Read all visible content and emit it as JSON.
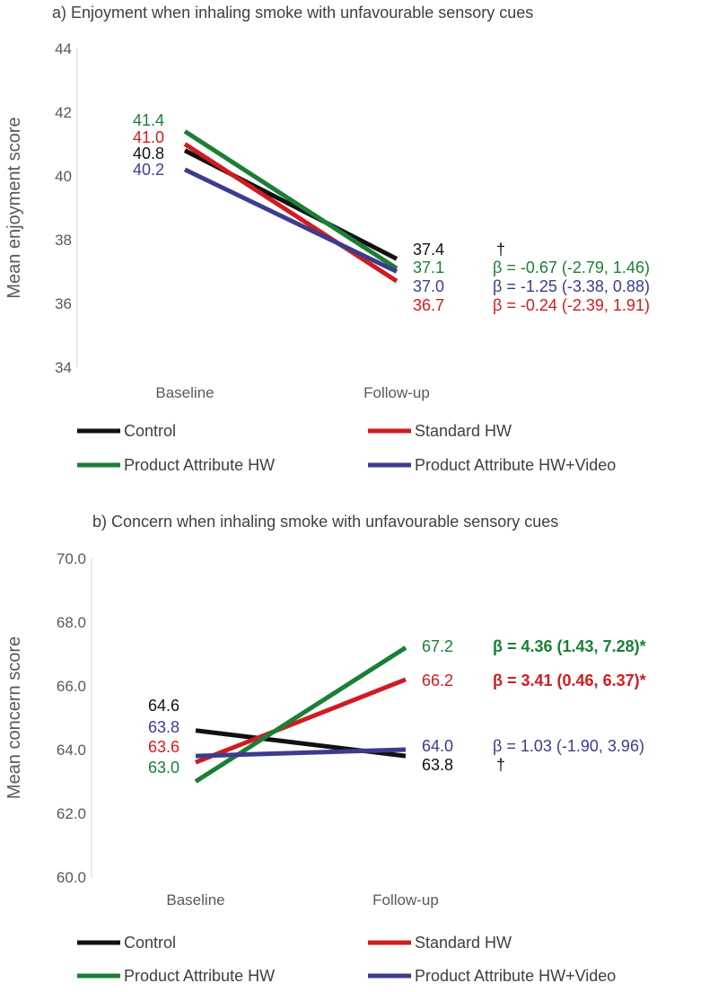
{
  "chart_data": [
    {
      "id": "a",
      "type": "line",
      "title": "a) Enjoyment when inhaling smoke with unfavourable sensory cues",
      "xlabel": "",
      "ylabel": "Mean enjoyment score",
      "categories": [
        "Baseline",
        "Follow-up"
      ],
      "ylim": [
        34,
        44
      ],
      "yticks": [
        34,
        36,
        38,
        40,
        42,
        44
      ],
      "ytick_labels": [
        "34",
        "36",
        "38",
        "40",
        "42",
        "44"
      ],
      "series": [
        {
          "name": "Control",
          "color": "#111111",
          "values": [
            40.8,
            37.4
          ],
          "labels": [
            "40.8",
            "37.4"
          ],
          "beta": "†",
          "beta_bold": false
        },
        {
          "name": "Standard HW",
          "color": "#d01c1f",
          "values": [
            41.0,
            36.7
          ],
          "labels": [
            "41.0",
            "36.7"
          ],
          "beta": "β = -0.24 (-2.39, 1.91)",
          "beta_bold": false
        },
        {
          "name": "Product Attribute HW",
          "color": "#1a7f36",
          "values": [
            41.4,
            37.1
          ],
          "labels": [
            "41.4",
            "37.1"
          ],
          "beta": "β = -0.67 (-2.79, 1.46)",
          "beta_bold": false
        },
        {
          "name": "Product Attribute HW+Video",
          "color": "#3c3c8e",
          "values": [
            40.2,
            37.0
          ],
          "labels": [
            "40.2",
            "37.0"
          ],
          "beta": "β = -1.25 (-3.38, 0.88)",
          "beta_bold": false
        }
      ]
    },
    {
      "id": "b",
      "type": "line",
      "title": "b) Concern when inhaling smoke with unfavourable sensory cues",
      "xlabel": "",
      "ylabel": "Mean concern score",
      "categories": [
        "Baseline",
        "Follow-up"
      ],
      "ylim": [
        60,
        70
      ],
      "yticks": [
        60,
        62,
        64,
        66,
        68,
        70
      ],
      "ytick_labels": [
        "60.0",
        "62.0",
        "64.0",
        "66.0",
        "68.0",
        "70.0"
      ],
      "series": [
        {
          "name": "Control",
          "color": "#111111",
          "values": [
            64.6,
            63.8
          ],
          "labels": [
            "64.6",
            "63.8"
          ],
          "beta": "†",
          "beta_bold": false
        },
        {
          "name": "Standard HW",
          "color": "#d01c1f",
          "values": [
            63.6,
            66.2
          ],
          "labels": [
            "63.6",
            "66.2"
          ],
          "beta": "β = 3.41 (0.46, 6.37)*",
          "beta_bold": true
        },
        {
          "name": "Product Attribute HW",
          "color": "#1a7f36",
          "values": [
            63.0,
            67.2
          ],
          "labels": [
            "63.0",
            "67.2"
          ],
          "beta": "β = 4.36 (1.43, 7.28)*",
          "beta_bold": true
        },
        {
          "name": "Product Attribute HW+Video",
          "color": "#3c3c8e",
          "values": [
            63.8,
            64.0
          ],
          "labels": [
            "63.8",
            "64.0"
          ],
          "beta": "β = 1.03 (-1.90, 3.96)",
          "beta_bold": false
        }
      ]
    }
  ]
}
